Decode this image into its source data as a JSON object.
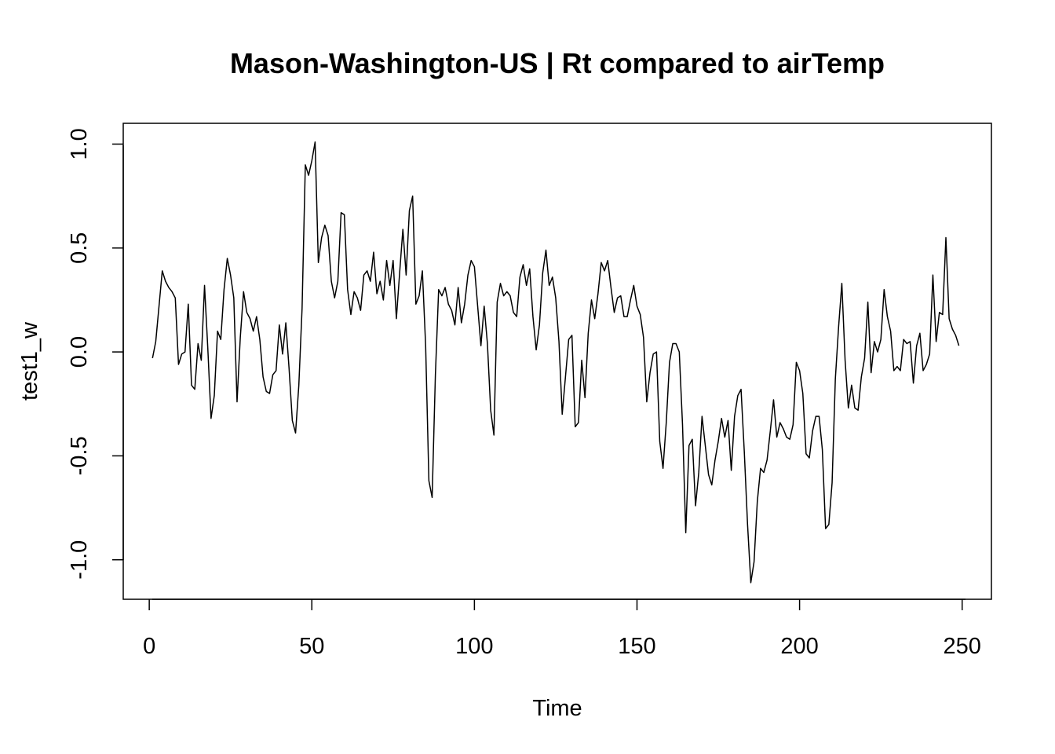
{
  "chart_data": {
    "type": "line",
    "title": "Mason-Washington-US | Rt compared to airTemp",
    "xlabel": "Time",
    "ylabel": "test1_w",
    "xlim": [
      -8,
      259
    ],
    "ylim": [
      -1.19,
      1.1
    ],
    "x_ticks": [
      0,
      50,
      100,
      150,
      200,
      250
    ],
    "x_tick_labels": [
      "0",
      "50",
      "100",
      "150",
      "200",
      "250"
    ],
    "y_ticks": [
      -1.0,
      -0.5,
      0.0,
      0.5,
      1.0
    ],
    "y_tick_labels": [
      "-1.0",
      "-0.5",
      "0.0",
      "0.5",
      "1.0"
    ],
    "grid": false,
    "legend": "none",
    "line_color": "#000000",
    "series": [
      {
        "x_start": 1,
        "values": [
          -0.03,
          0.05,
          0.22,
          0.39,
          0.34,
          0.31,
          0.29,
          0.26,
          -0.06,
          -0.01,
          0.0,
          0.23,
          -0.16,
          -0.18,
          0.04,
          -0.04,
          0.32,
          0.02,
          -0.32,
          -0.21,
          0.1,
          0.06,
          0.3,
          0.45,
          0.37,
          0.26,
          -0.24,
          0.07,
          0.29,
          0.19,
          0.16,
          0.1,
          0.17,
          0.06,
          -0.12,
          -0.19,
          -0.2,
          -0.11,
          -0.09,
          0.13,
          -0.01,
          0.14,
          -0.08,
          -0.33,
          -0.39,
          -0.16,
          0.21,
          0.9,
          0.85,
          0.92,
          1.01,
          0.43,
          0.55,
          0.61,
          0.56,
          0.34,
          0.26,
          0.34,
          0.67,
          0.66,
          0.3,
          0.18,
          0.29,
          0.26,
          0.2,
          0.37,
          0.39,
          0.34,
          0.48,
          0.28,
          0.34,
          0.25,
          0.44,
          0.32,
          0.44,
          0.16,
          0.38,
          0.59,
          0.37,
          0.68,
          0.75,
          0.23,
          0.27,
          0.39,
          0.03,
          -0.62,
          -0.7,
          -0.11,
          0.3,
          0.27,
          0.31,
          0.23,
          0.2,
          0.13,
          0.31,
          0.14,
          0.23,
          0.37,
          0.44,
          0.41,
          0.22,
          0.03,
          0.22,
          0.04,
          -0.28,
          -0.4,
          0.24,
          0.33,
          0.27,
          0.29,
          0.27,
          0.19,
          0.17,
          0.36,
          0.42,
          0.32,
          0.4,
          0.17,
          0.01,
          0.13,
          0.38,
          0.49,
          0.32,
          0.36,
          0.26,
          0.05,
          -0.3,
          -0.12,
          0.06,
          0.08,
          -0.36,
          -0.34,
          -0.04,
          -0.22,
          0.09,
          0.25,
          0.16,
          0.28,
          0.43,
          0.39,
          0.44,
          0.31,
          0.19,
          0.26,
          0.27,
          0.17,
          0.17,
          0.25,
          0.32,
          0.22,
          0.18,
          0.07,
          -0.24,
          -0.1,
          -0.01,
          0.0,
          -0.43,
          -0.56,
          -0.34,
          -0.05,
          0.04,
          0.04,
          0.0,
          -0.35,
          -0.87,
          -0.45,
          -0.42,
          -0.74,
          -0.58,
          -0.31,
          -0.45,
          -0.59,
          -0.64,
          -0.52,
          -0.43,
          -0.32,
          -0.41,
          -0.33,
          -0.57,
          -0.31,
          -0.21,
          -0.18,
          -0.48,
          -0.83,
          -1.11,
          -1.01,
          -0.72,
          -0.56,
          -0.58,
          -0.52,
          -0.38,
          -0.23,
          -0.41,
          -0.34,
          -0.37,
          -0.41,
          -0.42,
          -0.35,
          -0.05,
          -0.09,
          -0.2,
          -0.49,
          -0.51,
          -0.38,
          -0.31,
          -0.31,
          -0.47,
          -0.85,
          -0.83,
          -0.63,
          -0.13,
          0.12,
          0.33,
          -0.04,
          -0.27,
          -0.16,
          -0.27,
          -0.28,
          -0.12,
          -0.03,
          0.24,
          -0.1,
          0.05,
          0.0,
          0.06,
          0.3,
          0.17,
          0.1,
          -0.09,
          -0.07,
          -0.09,
          0.06,
          0.04,
          0.05,
          -0.15,
          0.03,
          0.09,
          -0.09,
          -0.06,
          -0.01,
          0.37,
          0.05,
          0.19,
          0.18,
          0.55,
          0.16,
          0.11,
          0.08,
          0.03
        ]
      }
    ]
  }
}
